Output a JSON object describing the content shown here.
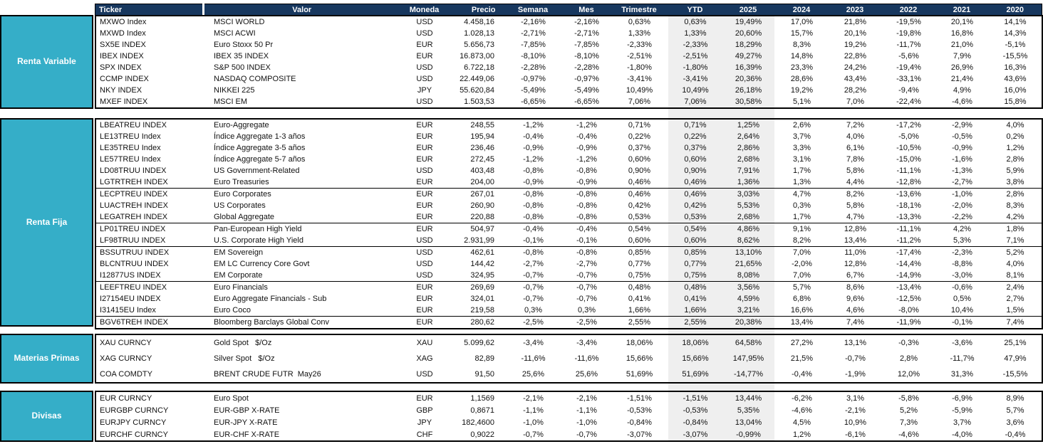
{
  "colors": {
    "header_bg": "#17375E",
    "sidebar_bg": "#35AEC8",
    "highlight_band": "#EFEFEF",
    "text": "#111111"
  },
  "header": {
    "columns": [
      "Ticker",
      "Valor",
      "Moneda",
      "Precio",
      "Semana",
      "Mes",
      "Trimestre",
      "YTD",
      "2025",
      "2024",
      "2023",
      "2022",
      "2021",
      "2020"
    ]
  },
  "sections": [
    {
      "id": "renta-variable",
      "label": "Renta Variable",
      "separators_before": [],
      "rows": [
        [
          "MXWO Index",
          "MSCI WORLD",
          "USD",
          "4.458,16",
          "-2,16%",
          "-2,16%",
          "0,63%",
          "0,63%",
          "19,49%",
          "17,0%",
          "21,8%",
          "-19,5%",
          "20,1%",
          "14,1%"
        ],
        [
          "MXWD Index",
          "MSCI ACWI",
          "USD",
          "1.028,13",
          "-2,71%",
          "-2,71%",
          "1,33%",
          "1,33%",
          "20,60%",
          "15,7%",
          "20,1%",
          "-19,8%",
          "16,8%",
          "14,3%"
        ],
        [
          "SX5E INDEX",
          "Euro Stoxx 50 Pr",
          "EUR",
          "5.656,73",
          "-7,85%",
          "-7,85%",
          "-2,33%",
          "-2,33%",
          "18,29%",
          "8,3%",
          "19,2%",
          "-11,7%",
          "21,0%",
          "-5,1%"
        ],
        [
          "IBEX INDEX",
          "IBEX 35 INDEX",
          "EUR",
          "16.873,00",
          "-8,10%",
          "-8,10%",
          "-2,51%",
          "-2,51%",
          "49,27%",
          "14,8%",
          "22,8%",
          "-5,6%",
          "7,9%",
          "-15,5%"
        ],
        [
          "SPX INDEX",
          "S&P 500 INDEX",
          "USD",
          "6.722,18",
          "-2,28%",
          "-2,28%",
          "-1,80%",
          "-1,80%",
          "16,39%",
          "23,3%",
          "24,2%",
          "-19,4%",
          "26,9%",
          "16,3%"
        ],
        [
          "CCMP INDEX",
          "NASDAQ COMPOSITE",
          "USD",
          "22.449,06",
          "-0,97%",
          "-0,97%",
          "-3,41%",
          "-3,41%",
          "20,36%",
          "28,6%",
          "43,4%",
          "-33,1%",
          "21,4%",
          "43,6%"
        ],
        [
          "NKY INDEX",
          "NIKKEI 225",
          "JPY",
          "55.620,84",
          "-5,49%",
          "-5,49%",
          "10,49%",
          "10,49%",
          "26,18%",
          "19,2%",
          "28,2%",
          "-9,4%",
          "4,9%",
          "16,0%"
        ],
        [
          "MXEF INDEX",
          "MSCI EM",
          "USD",
          "1.503,53",
          "-6,65%",
          "-6,65%",
          "7,06%",
          "7,06%",
          "30,58%",
          "5,1%",
          "7,0%",
          "-22,4%",
          "-4,6%",
          "15,8%"
        ]
      ]
    },
    {
      "id": "renta-fija",
      "label": "Renta Fija",
      "separators_before": [
        6,
        9,
        11,
        14,
        17
      ],
      "rows": [
        [
          "LBEATREU INDEX",
          "Euro-Aggregate",
          "EUR",
          "248,55",
          "-1,2%",
          "-1,2%",
          "0,71%",
          "0,71%",
          "1,25%",
          "2,6%",
          "7,2%",
          "-17,2%",
          "-2,9%",
          "4,0%"
        ],
        [
          "LE13TREU Index",
          "Índice Aggregate 1-3 años",
          "EUR",
          "195,94",
          "-0,4%",
          "-0,4%",
          "0,22%",
          "0,22%",
          "2,64%",
          "3,7%",
          "4,0%",
          "-5,0%",
          "-0,5%",
          "0,2%"
        ],
        [
          "LE35TREU Index",
          "Índice Aggregate 3-5 años",
          "EUR",
          "236,46",
          "-0,9%",
          "-0,9%",
          "0,37%",
          "0,37%",
          "2,86%",
          "3,3%",
          "6,1%",
          "-10,5%",
          "-0,9%",
          "1,2%"
        ],
        [
          "LE57TREU Index",
          "Índice Aggregate 5-7 años",
          "EUR",
          "272,45",
          "-1,2%",
          "-1,2%",
          "0,60%",
          "0,60%",
          "2,68%",
          "3,1%",
          "7,8%",
          "-15,0%",
          "-1,6%",
          "2,8%"
        ],
        [
          "LD08TRUU INDEX",
          "US Government-Related",
          "USD",
          "403,48",
          "-0,8%",
          "-0,8%",
          "0,90%",
          "0,90%",
          "7,91%",
          "1,7%",
          "5,8%",
          "-11,1%",
          "-1,3%",
          "5,9%"
        ],
        [
          "LGTRTREH INDEX",
          "Euro Treasuries",
          "EUR",
          "204,00",
          "-0,9%",
          "-0,9%",
          "0,46%",
          "0,46%",
          "1,36%",
          "1,3%",
          "4,4%",
          "-12,8%",
          "-2,7%",
          "3,8%"
        ],
        [
          "LECPTREU INDEX",
          "Euro Corporates",
          "EUR",
          "267,01",
          "-0,8%",
          "-0,8%",
          "0,46%",
          "0,46%",
          "3,03%",
          "4,7%",
          "8,2%",
          "-13,6%",
          "-1,0%",
          "2,8%"
        ],
        [
          "LUACTREH INDEX",
          "US Corporates",
          "EUR",
          "260,90",
          "-0,8%",
          "-0,8%",
          "0,42%",
          "0,42%",
          "5,53%",
          "0,3%",
          "5,8%",
          "-18,1%",
          "-2,0%",
          "8,3%"
        ],
        [
          "LEGATREH INDEX",
          "Global Aggregate",
          "EUR",
          "220,88",
          "-0,8%",
          "-0,8%",
          "0,53%",
          "0,53%",
          "2,68%",
          "1,7%",
          "4,7%",
          "-13,3%",
          "-2,2%",
          "4,2%"
        ],
        [
          "LP01TREU INDEX",
          "Pan-European High Yield",
          "EUR",
          "504,97",
          "-0,4%",
          "-0,4%",
          "0,54%",
          "0,54%",
          "4,86%",
          "9,1%",
          "12,8%",
          "-11,1%",
          "4,2%",
          "1,8%"
        ],
        [
          "LF98TRUU INDEX",
          "U.S. Corporate High Yield",
          "USD",
          "2.931,99",
          "-0,1%",
          "-0,1%",
          "0,60%",
          "0,60%",
          "8,62%",
          "8,2%",
          "13,4%",
          "-11,2%",
          "5,3%",
          "7,1%"
        ],
        [
          "BSSUTRUU INDEX",
          "EM Sovereign",
          "USD",
          "462,61",
          "-0,8%",
          "-0,8%",
          "0,85%",
          "0,85%",
          "13,10%",
          "7,0%",
          "11,0%",
          "-17,4%",
          "-2,3%",
          "5,2%"
        ],
        [
          "BLCNTRUU INDEX",
          "EM LC Currency Core Govt",
          "USD",
          "144,42",
          "-2,7%",
          "-2,7%",
          "0,77%",
          "0,77%",
          "21,65%",
          "-2,0%",
          "12,8%",
          "-14,4%",
          "-8,8%",
          "4,0%"
        ],
        [
          "I12877US INDEX",
          "EM Corporate",
          "USD",
          "324,95",
          "-0,7%",
          "-0,7%",
          "0,75%",
          "0,75%",
          "8,08%",
          "7,0%",
          "6,7%",
          "-14,9%",
          "-3,0%",
          "8,1%"
        ],
        [
          "LEEFTREU INDEX",
          "Euro Financials",
          "EUR",
          "269,69",
          "-0,7%",
          "-0,7%",
          "0,48%",
          "0,48%",
          "3,56%",
          "5,7%",
          "8,6%",
          "-13,4%",
          "-0,6%",
          "2,4%"
        ],
        [
          "I27154EU INDEX",
          "Euro Aggregate Financials - Sub",
          "EUR",
          "324,01",
          "-0,7%",
          "-0,7%",
          "0,41%",
          "0,41%",
          "4,59%",
          "6,8%",
          "9,6%",
          "-12,5%",
          "0,5%",
          "2,7%"
        ],
        [
          "I31415EU Index",
          "Euro Coco",
          "EUR",
          "219,58",
          "0,3%",
          "0,3%",
          "1,66%",
          "1,66%",
          "3,21%",
          "16,6%",
          "4,6%",
          "-8,0%",
          "10,4%",
          "1,5%"
        ],
        [
          "BGV6TREH INDEX",
          "Bloomberg Barclays Global Conv",
          "EUR",
          "280,62",
          "-2,5%",
          "-2,5%",
          "2,55%",
          "2,55%",
          "20,38%",
          "13,4%",
          "7,4%",
          "-11,9%",
          "-0,1%",
          "7,4%"
        ]
      ]
    },
    {
      "id": "materias-primas",
      "label": "Materias Primas",
      "separators_before": [],
      "rows": [
        [
          "XAU CURNCY",
          "Gold Spot   $/Oz",
          "XAU",
          "5.099,62",
          "-3,4%",
          "-3,4%",
          "18,06%",
          "18,06%",
          "64,58%",
          "27,2%",
          "13,1%",
          "-0,3%",
          "-3,6%",
          "25,1%"
        ],
        [
          "XAG CURNCY",
          "Silver Spot   $/Oz",
          "XAG",
          "82,89",
          "-11,6%",
          "-11,6%",
          "15,66%",
          "15,66%",
          "147,95%",
          "21,5%",
          "-0,7%",
          "2,8%",
          "-11,7%",
          "47,9%"
        ],
        [
          "COA COMDTY",
          "BRENT CRUDE FUTR  May26",
          "USD",
          "91,50",
          "25,6%",
          "25,6%",
          "51,69%",
          "51,69%",
          "-14,77%",
          "-0,4%",
          "-1,9%",
          "12,0%",
          "31,3%",
          "-15,5%"
        ]
      ]
    },
    {
      "id": "divisas",
      "label": "Divisas",
      "separators_before": [],
      "rows": [
        [
          "EUR CURNCY",
          "Euro Spot",
          "EUR",
          "1,1569",
          "-2,1%",
          "-2,1%",
          "-1,51%",
          "-1,51%",
          "13,44%",
          "-6,2%",
          "3,1%",
          "-5,8%",
          "-6,9%",
          "8,9%"
        ],
        [
          "EURGBP CURNCY",
          "EUR-GBP X-RATE",
          "GBP",
          "0,8671",
          "-1,1%",
          "-1,1%",
          "-0,53%",
          "-0,53%",
          "5,35%",
          "-4,6%",
          "-2,1%",
          "5,2%",
          "-5,9%",
          "5,7%"
        ],
        [
          "EURJPY CURNCY",
          "EUR-JPY X-RATE",
          "JPY",
          "182,4600",
          "-1,0%",
          "-1,0%",
          "-0,84%",
          "-0,84%",
          "13,04%",
          "4,5%",
          "10,9%",
          "7,3%",
          "3,7%",
          "3,6%"
        ],
        [
          "EURCHF CURNCY",
          "EUR-CHF X-RATE",
          "CHF",
          "0,9022",
          "-0,7%",
          "-0,7%",
          "-3,07%",
          "-3,07%",
          "-0,99%",
          "1,2%",
          "-6,1%",
          "-4,6%",
          "-4,0%",
          "-0,4%"
        ]
      ]
    }
  ]
}
